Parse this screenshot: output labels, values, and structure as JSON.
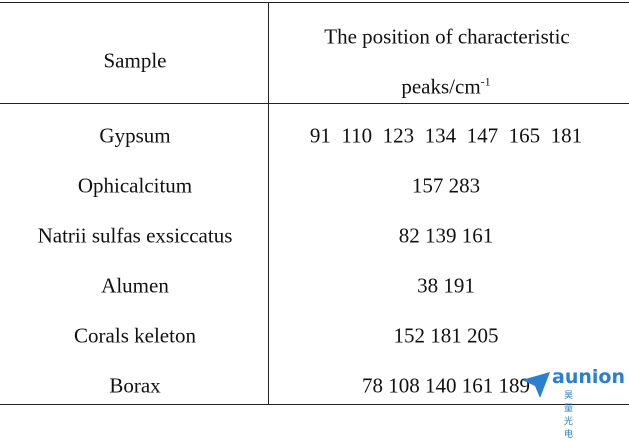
{
  "header": {
    "sample": "Sample",
    "peaks_line1": "The position of characteristic",
    "peaks_line2": "peaks/cm",
    "peaks_sup": "-1"
  },
  "table": {
    "rows": [
      [
        "Gypsum",
        "91  110  123  134  147  165  181"
      ],
      [
        "Ophicalcitum",
        "157 283"
      ],
      [
        "Natrii sulfas exsiccatus",
        "82 139 161"
      ],
      [
        "Alumen",
        "38 191"
      ],
      [
        "Corals keleton",
        "152 181 205"
      ],
      [
        "Borax",
        "78 108 140 161 189"
      ]
    ]
  },
  "watermark": {
    "brand": "aunion",
    "subtitle": "昊量光电"
  }
}
